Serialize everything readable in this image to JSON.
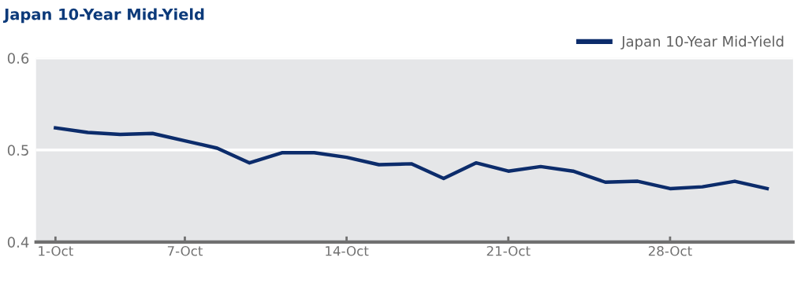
{
  "chart_data": {
    "type": "line",
    "title": "Japan 10-Year Mid-Yield",
    "categories": [
      "1-Oct",
      null,
      null,
      null,
      "7-Oct",
      null,
      null,
      null,
      null,
      "14-Oct",
      null,
      null,
      null,
      null,
      "21-Oct",
      null,
      null,
      null,
      null,
      "28-Oct",
      null,
      null,
      null
    ],
    "series": [
      {
        "name": "Japan 10-Year Mid-Yield",
        "color": "#0c2c6b",
        "values": [
          0.524,
          0.519,
          0.517,
          0.518,
          0.51,
          0.502,
          0.486,
          0.497,
          0.497,
          0.492,
          0.484,
          0.485,
          0.469,
          0.486,
          0.477,
          0.482,
          0.477,
          0.465,
          0.466,
          0.458,
          0.46,
          0.466,
          0.458
        ]
      }
    ],
    "ylim": [
      0.4,
      0.6
    ],
    "yticks": [
      0.4,
      0.5,
      0.6
    ],
    "grid": "y",
    "legend": "top right",
    "marker": "none",
    "line_style": "solid"
  }
}
